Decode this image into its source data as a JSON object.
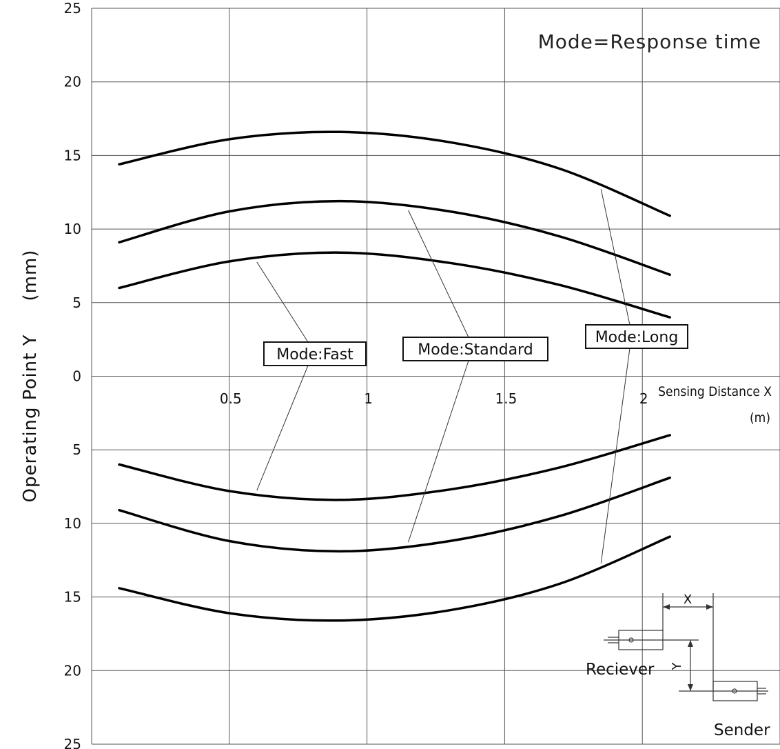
{
  "chart_data": {
    "type": "line",
    "title": "Mode=Response time",
    "ylabel": "Operating Point Y",
    "ylabel_unit": "(mm)",
    "xlabel": "Sensing Distance X",
    "xlabel_unit": "(m)",
    "xlim": [
      0,
      2.5
    ],
    "ylim": [
      -25,
      25
    ],
    "x_ticks": [
      "0.5",
      "1",
      "1.5",
      "2"
    ],
    "y_ticks": [
      "25",
      "20",
      "15",
      "10",
      "5",
      "0",
      "5",
      "10",
      "15",
      "20",
      "25"
    ],
    "grid": true,
    "series": [
      {
        "name": "Mode:Fast",
        "x": [
          0.1,
          0.5,
          0.9,
          1.3,
          1.7,
          2.1
        ],
        "y": [
          6,
          7.8,
          8.4,
          7.7,
          6.2,
          4
        ]
      },
      {
        "name": "Mode:Standard",
        "x": [
          0.1,
          0.5,
          0.9,
          1.3,
          1.7,
          2.1
        ],
        "y": [
          9.1,
          11.2,
          11.9,
          11.2,
          9.5,
          6.9
        ]
      },
      {
        "name": "Mode:Long",
        "x": [
          0.1,
          0.5,
          0.9,
          1.3,
          1.7,
          2.1
        ],
        "y": [
          14.4,
          16.1,
          16.6,
          15.9,
          14.1,
          10.9
        ]
      }
    ]
  },
  "diagram": {
    "x_label": "X",
    "y_label": "Y",
    "receiver_label": "Reciever",
    "sender_label": "Sender"
  }
}
